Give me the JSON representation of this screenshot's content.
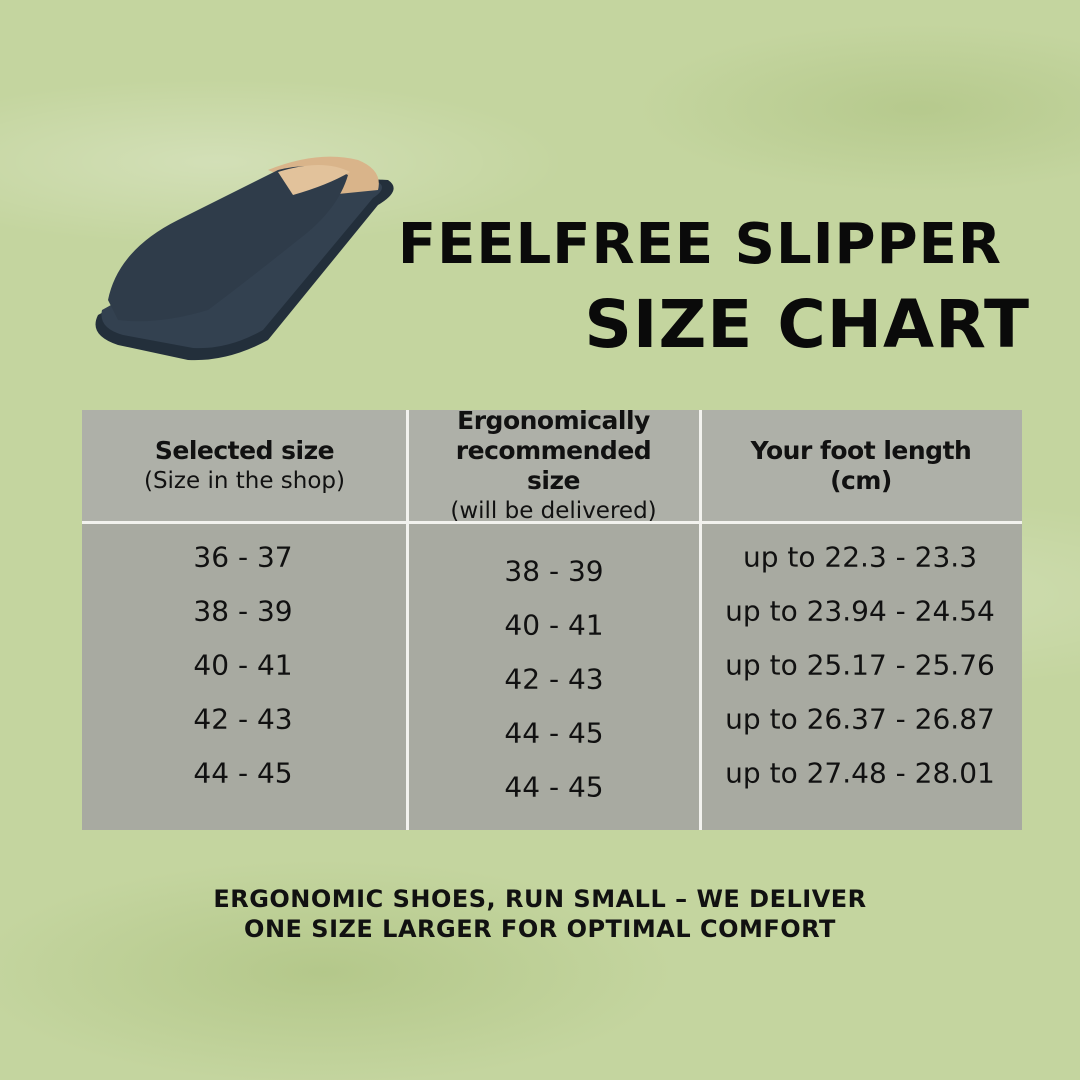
{
  "title": {
    "line1": "FEELFREE SLIPPER",
    "line2": "SIZE CHART"
  },
  "product_image": "navy-slipper-with-fur-lining",
  "table": {
    "headers": [
      {
        "bold": "Selected size",
        "sub": "(Size in the shop)"
      },
      {
        "bold": "Ergonomically recommended size",
        "sub": "(will be delivered)"
      },
      {
        "bold": "Your foot length (cm)",
        "sub": ""
      }
    ],
    "selected": [
      "36 - 37",
      "38 - 39",
      "40 - 41",
      "42 - 43",
      "44 - 45"
    ],
    "recommended": [
      "38 - 39",
      "40 - 41",
      "42 - 43",
      "44 - 45",
      "44 - 45"
    ],
    "foot_length": [
      "up to 22.3 - 23.3",
      "up to 23.94 - 24.54",
      "up to 25.17 - 25.76",
      "up to 26.37 - 26.87",
      "up to 27.48 - 28.01"
    ]
  },
  "note": {
    "line1": "ERGONOMIC SHOES, RUN SMALL – WE DELIVER",
    "line2": "ONE SIZE LARGER FOR OPTIMAL COMFORT"
  },
  "colors": {
    "background": "#c4d59f",
    "table": "#a8aaa1",
    "text": "#111111",
    "slipper": "#2b3845"
  }
}
